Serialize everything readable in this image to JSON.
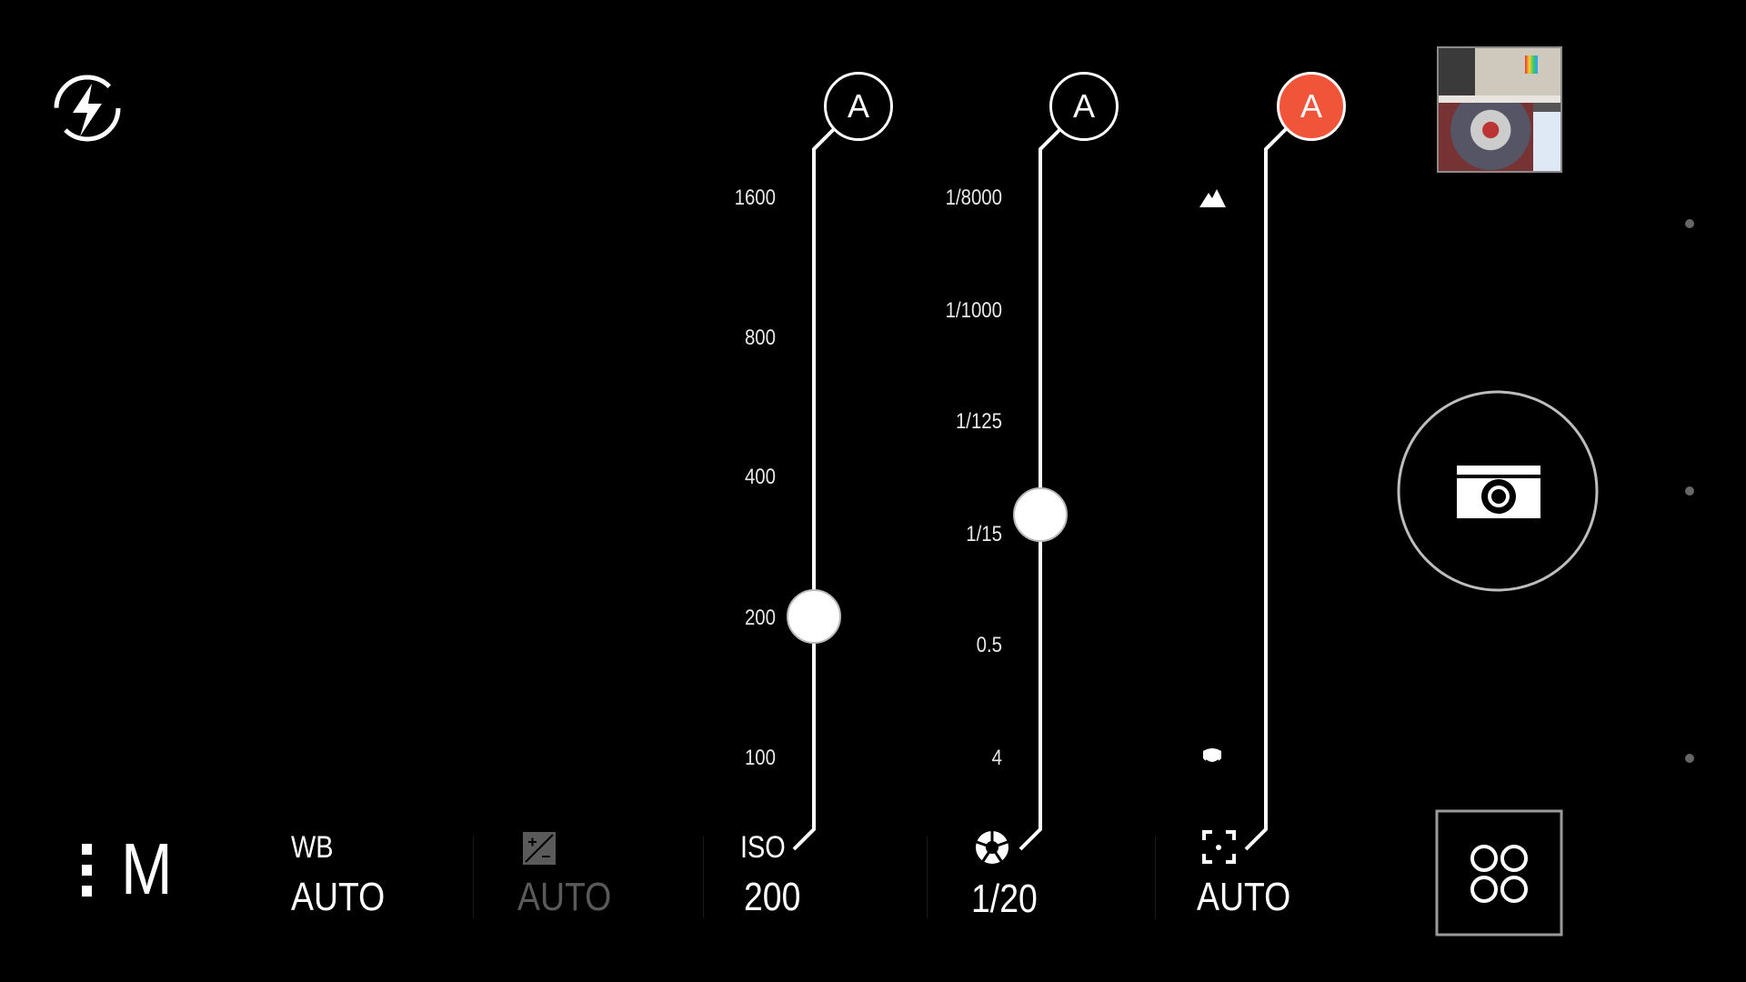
{
  "top_bar": {
    "flash_icon": "flash-auto-icon"
  },
  "sliders": {
    "iso": {
      "auto_label": "A",
      "ticks": [
        "1600",
        "800",
        "400",
        "200",
        "100"
      ],
      "value": "200"
    },
    "shutter": {
      "auto_label": "A",
      "ticks": [
        "1/8000",
        "1/1000",
        "1/125",
        "1/15",
        "0.5",
        "4"
      ],
      "value_position": "between 1/125 and 1/15"
    },
    "focus": {
      "auto_label": "A",
      "auto_active": true,
      "top_icon": "mountain-infinity-icon",
      "bottom_icon": "macro-flower-icon"
    }
  },
  "bottom_bar": {
    "mode": "M",
    "wb": {
      "label": "WB",
      "value": "AUTO"
    },
    "exposure": {
      "icon": "exposure-icon",
      "value": "AUTO"
    },
    "iso": {
      "label": "ISO",
      "value": "200"
    },
    "shutter": {
      "icon": "aperture-icon",
      "value": "1/20"
    },
    "focus": {
      "icon": "focus-icon",
      "value": "AUTO"
    }
  },
  "colors": {
    "accent": "#f0553a",
    "text": "#ffffff",
    "disabled": "#5a5a5a"
  }
}
